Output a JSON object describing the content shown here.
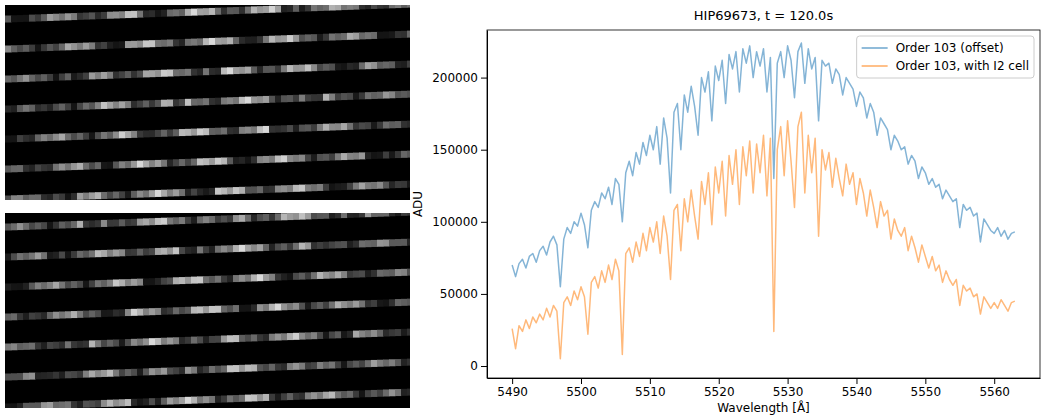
{
  "chart_data": {
    "type": "line",
    "title": "HIP69673, t = 120.0s",
    "x_label": "Wavelength [Å]",
    "y_label": "ADU",
    "xlim": [
      5486.35,
      5566.65
    ],
    "ylim": [
      -8300,
      233000
    ],
    "xticks": [
      5490,
      5500,
      5510,
      5520,
      5530,
      5540,
      5550,
      5560
    ],
    "yticks": [
      0,
      50000,
      100000,
      150000,
      200000
    ],
    "legend": "upper right",
    "grid": false,
    "x": [
      5490.0,
      5490.5,
      5491.0,
      5491.5,
      5492.0,
      5492.5,
      5493.0,
      5493.5,
      5494.0,
      5494.5,
      5495.0,
      5495.5,
      5496.0,
      5496.5,
      5497.0,
      5497.5,
      5498.0,
      5498.5,
      5499.0,
      5499.5,
      5500.0,
      5500.5,
      5501.0,
      5501.5,
      5502.0,
      5502.5,
      5503.0,
      5503.5,
      5504.0,
      5504.5,
      5505.0,
      5505.5,
      5506.0,
      5506.5,
      5507.0,
      5507.5,
      5508.0,
      5508.5,
      5509.0,
      5509.5,
      5510.0,
      5510.5,
      5511.0,
      5511.5,
      5512.0,
      5512.5,
      5513.0,
      5513.5,
      5514.0,
      5514.5,
      5515.0,
      5515.5,
      5516.0,
      5516.5,
      5517.0,
      5517.5,
      5518.0,
      5518.5,
      5519.0,
      5519.5,
      5520.0,
      5520.5,
      5521.0,
      5521.5,
      5522.0,
      5522.5,
      5523.0,
      5523.5,
      5524.0,
      5524.5,
      5525.0,
      5525.5,
      5526.0,
      5526.5,
      5527.0,
      5527.5,
      5528.0,
      5528.5,
      5529.0,
      5529.5,
      5530.0,
      5530.5,
      5531.0,
      5531.5,
      5532.0,
      5532.5,
      5533.0,
      5533.5,
      5534.0,
      5534.5,
      5535.0,
      5535.5,
      5536.0,
      5536.5,
      5537.0,
      5537.5,
      5538.0,
      5538.5,
      5539.0,
      5539.5,
      5540.0,
      5540.5,
      5541.0,
      5541.5,
      5542.0,
      5542.5,
      5543.0,
      5543.5,
      5544.0,
      5544.5,
      5545.0,
      5545.5,
      5546.0,
      5546.5,
      5547.0,
      5547.5,
      5548.0,
      5548.5,
      5549.0,
      5549.5,
      5550.0,
      5550.5,
      5551.0,
      5551.5,
      5552.0,
      5552.5,
      5553.0,
      5553.5,
      5554.0,
      5554.5,
      5555.0,
      5555.5,
      5556.0,
      5556.5,
      5557.0,
      5557.5,
      5558.0,
      5558.5,
      5559.0,
      5559.5,
      5560.0,
      5560.5,
      5561.0,
      5561.5,
      5562.0,
      5562.5,
      5563.0
    ],
    "series": [
      {
        "name": "Order 103 (offset)",
        "color": "#1f77b4",
        "values": [
          70000,
          62000,
          71000,
          74000,
          68000,
          76000,
          78000,
          72000,
          80000,
          83000,
          77000,
          86000,
          90000,
          84000,
          55000,
          88000,
          96000,
          92000,
          100000,
          97000,
          106000,
          98000,
          82000,
          108000,
          114000,
          110000,
          120000,
          116000,
          124000,
          112000,
          130000,
          126000,
          100000,
          134000,
          142000,
          132000,
          148000,
          140000,
          155000,
          146000,
          160000,
          150000,
          166000,
          140000,
          172000,
          158000,
          120000,
          176000,
          182000,
          150000,
          188000,
          176000,
          194000,
          180000,
          160000,
          200000,
          190000,
          204000,
          170000,
          208000,
          198000,
          212000,
          182000,
          216000,
          206000,
          218000,
          190000,
          220000,
          210000,
          222000,
          200000,
          218000,
          208000,
          220000,
          190000,
          214000,
          130000,
          210000,
          218000,
          200000,
          222000,
          212000,
          186000,
          218000,
          224000,
          196000,
          220000,
          206000,
          214000,
          170000,
          212000,
          208000,
          210000,
          196000,
          206000,
          202000,
          188000,
          200000,
          196000,
          192000,
          180000,
          190000,
          186000,
          172000,
          182000,
          176000,
          160000,
          172000,
          168000,
          164000,
          150000,
          160000,
          156000,
          150000,
          152000,
          140000,
          146000,
          142000,
          130000,
          138000,
          134000,
          126000,
          130000,
          124000,
          126000,
          116000,
          122000,
          118000,
          114000,
          116000,
          96000,
          112000,
          108000,
          110000,
          104000,
          106000,
          86000,
          102000,
          98000,
          94000,
          92000,
          96000,
          90000,
          94000,
          88000,
          92000,
          93000
        ]
      },
      {
        "name": "Order 103, with I2 cell",
        "color": "#ff7f0e",
        "values": [
          26000,
          12000,
          28000,
          24000,
          32000,
          26000,
          34000,
          30000,
          36000,
          32000,
          40000,
          34000,
          42000,
          38000,
          5000,
          44000,
          48000,
          42000,
          52000,
          46000,
          55000,
          48000,
          22000,
          58000,
          62000,
          54000,
          66000,
          58000,
          70000,
          60000,
          74000,
          66000,
          8000,
          78000,
          82000,
          72000,
          86000,
          76000,
          92000,
          80000,
          96000,
          86000,
          100000,
          78000,
          104000,
          90000,
          60000,
          108000,
          112000,
          80000,
          116000,
          100000,
          122000,
          104000,
          88000,
          128000,
          112000,
          134000,
          98000,
          138000,
          120000,
          142000,
          104000,
          146000,
          126000,
          150000,
          112000,
          152000,
          132000,
          156000,
          120000,
          154000,
          134000,
          160000,
          118000,
          158000,
          24000,
          150000,
          166000,
          132000,
          170000,
          142000,
          110000,
          166000,
          176000,
          120000,
          160000,
          134000,
          158000,
          90000,
          150000,
          136000,
          148000,
          124000,
          144000,
          130000,
          118000,
          140000,
          126000,
          134000,
          112000,
          130000,
          120000,
          104000,
          122000,
          110000,
          96000,
          114000,
          104000,
          108000,
          88000,
          102000,
          94000,
          90000,
          96000,
          80000,
          90000,
          82000,
          72000,
          84000,
          76000,
          68000,
          76000,
          66000,
          70000,
          58000,
          66000,
          60000,
          56000,
          60000,
          42000,
          56000,
          52000,
          54000,
          48000,
          50000,
          36000,
          48000,
          44000,
          40000,
          44000,
          40000,
          46000,
          42000,
          38000,
          44000,
          45000
        ]
      }
    ]
  }
}
